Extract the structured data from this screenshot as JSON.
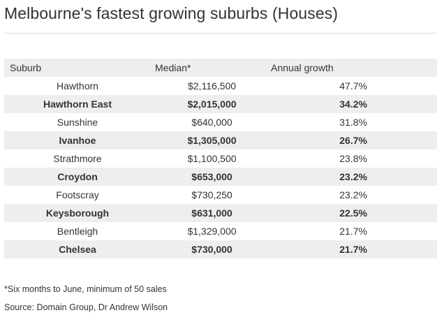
{
  "title": "Melbourne's fastest growing suburbs (Houses)",
  "table": {
    "headers": [
      "Suburb",
      "Median*",
      "Annual growth"
    ],
    "rows": [
      [
        "Hawthorn",
        "$2,116,500",
        "47.7%"
      ],
      [
        "Hawthorn East",
        "$2,015,000",
        "34.2%"
      ],
      [
        "Sunshine",
        "$640,000",
        "31.8%"
      ],
      [
        "Ivanhoe",
        "$1,305,000",
        "26.7%"
      ],
      [
        "Strathmore",
        "$1,100,500",
        "23.8%"
      ],
      [
        "Croydon",
        "$653,000",
        "23.2%"
      ],
      [
        "Footscray",
        "$730,250",
        "23.2%"
      ],
      [
        "Keysborough",
        "$631,000",
        "22.5%"
      ],
      [
        "Bentleigh",
        "$1,329,000",
        "21.7%"
      ],
      [
        "Chelsea",
        "$730,000",
        "21.7%"
      ]
    ]
  },
  "footnote": "*Six months to June, minimum of 50 sales",
  "source": "Source: Domain Group, Dr Andrew Wilson",
  "colors": {
    "row_stripe": "#eeeeee",
    "text": "#333333",
    "rule": "#dddddd"
  }
}
